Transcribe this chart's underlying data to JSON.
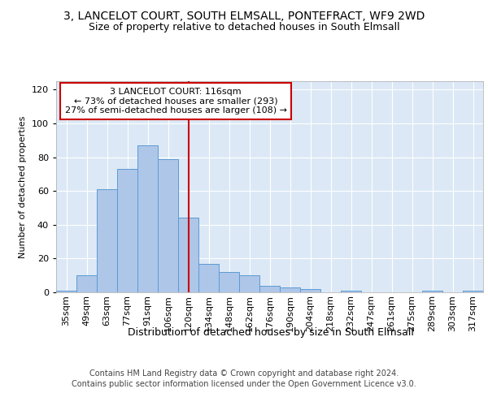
{
  "title1": "3, LANCELOT COURT, SOUTH ELMSALL, PONTEFRACT, WF9 2WD",
  "title2": "Size of property relative to detached houses in South Elmsall",
  "xlabel": "Distribution of detached houses by size in South Elmsall",
  "ylabel": "Number of detached properties",
  "categories": [
    "35sqm",
    "49sqm",
    "63sqm",
    "77sqm",
    "91sqm",
    "106sqm",
    "120sqm",
    "134sqm",
    "148sqm",
    "162sqm",
    "176sqm",
    "190sqm",
    "204sqm",
    "218sqm",
    "232sqm",
    "247sqm",
    "261sqm",
    "275sqm",
    "289sqm",
    "303sqm",
    "317sqm"
  ],
  "values": [
    1,
    10,
    61,
    73,
    87,
    79,
    44,
    17,
    12,
    10,
    4,
    3,
    2,
    0,
    1,
    0,
    0,
    0,
    1,
    0,
    1
  ],
  "bar_color": "#aec6e8",
  "bar_edge_color": "#5b9bd5",
  "vline_index": 6,
  "vline_color": "#cc0000",
  "annotation_text": "3 LANCELOT COURT: 116sqm\n← 73% of detached houses are smaller (293)\n27% of semi-detached houses are larger (108) →",
  "annotation_box_color": "#ffffff",
  "annotation_box_edge_color": "#cc0000",
  "footer1": "Contains HM Land Registry data © Crown copyright and database right 2024.",
  "footer2": "Contains public sector information licensed under the Open Government Licence v3.0.",
  "ylim": [
    0,
    125
  ],
  "yticks": [
    0,
    20,
    40,
    60,
    80,
    100,
    120
  ],
  "fig_bg_color": "#ffffff",
  "plot_bg_color": "#dce8f5",
  "title1_fontsize": 10,
  "title2_fontsize": 9,
  "xlabel_fontsize": 9,
  "ylabel_fontsize": 8,
  "tick_fontsize": 8,
  "annotation_fontsize": 8,
  "footer_fontsize": 7
}
